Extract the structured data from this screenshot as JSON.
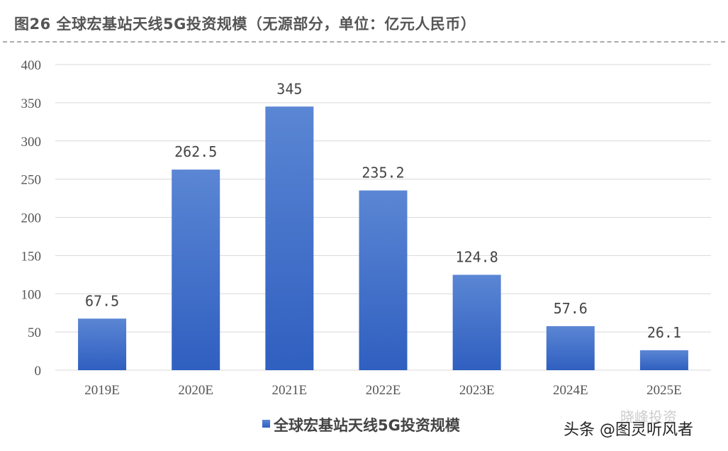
{
  "title": "图26 全球宏基站天线5G投资规模（无源部分，单位：亿元人民币）",
  "watermark": "头条 @图灵听风者",
  "watermark_faint": "晓峰投资",
  "chart_data": {
    "type": "bar",
    "categories": [
      "2019E",
      "2020E",
      "2021E",
      "2022E",
      "2023E",
      "2024E",
      "2025E"
    ],
    "series": [
      {
        "name": "全球宏基站天线5G投资规模",
        "values": [
          67.5,
          262.5,
          345,
          235.2,
          124.8,
          57.6,
          26.1
        ],
        "color": "#4472C4"
      }
    ],
    "data_labels": [
      "67.5",
      "262.5",
      "345",
      "235.2",
      "124.8",
      "57.6",
      "26.1"
    ],
    "ylim": [
      0,
      400
    ],
    "yticks": [
      0,
      50,
      100,
      150,
      200,
      250,
      300,
      350,
      400
    ],
    "grid": true,
    "legend": "bottom"
  }
}
